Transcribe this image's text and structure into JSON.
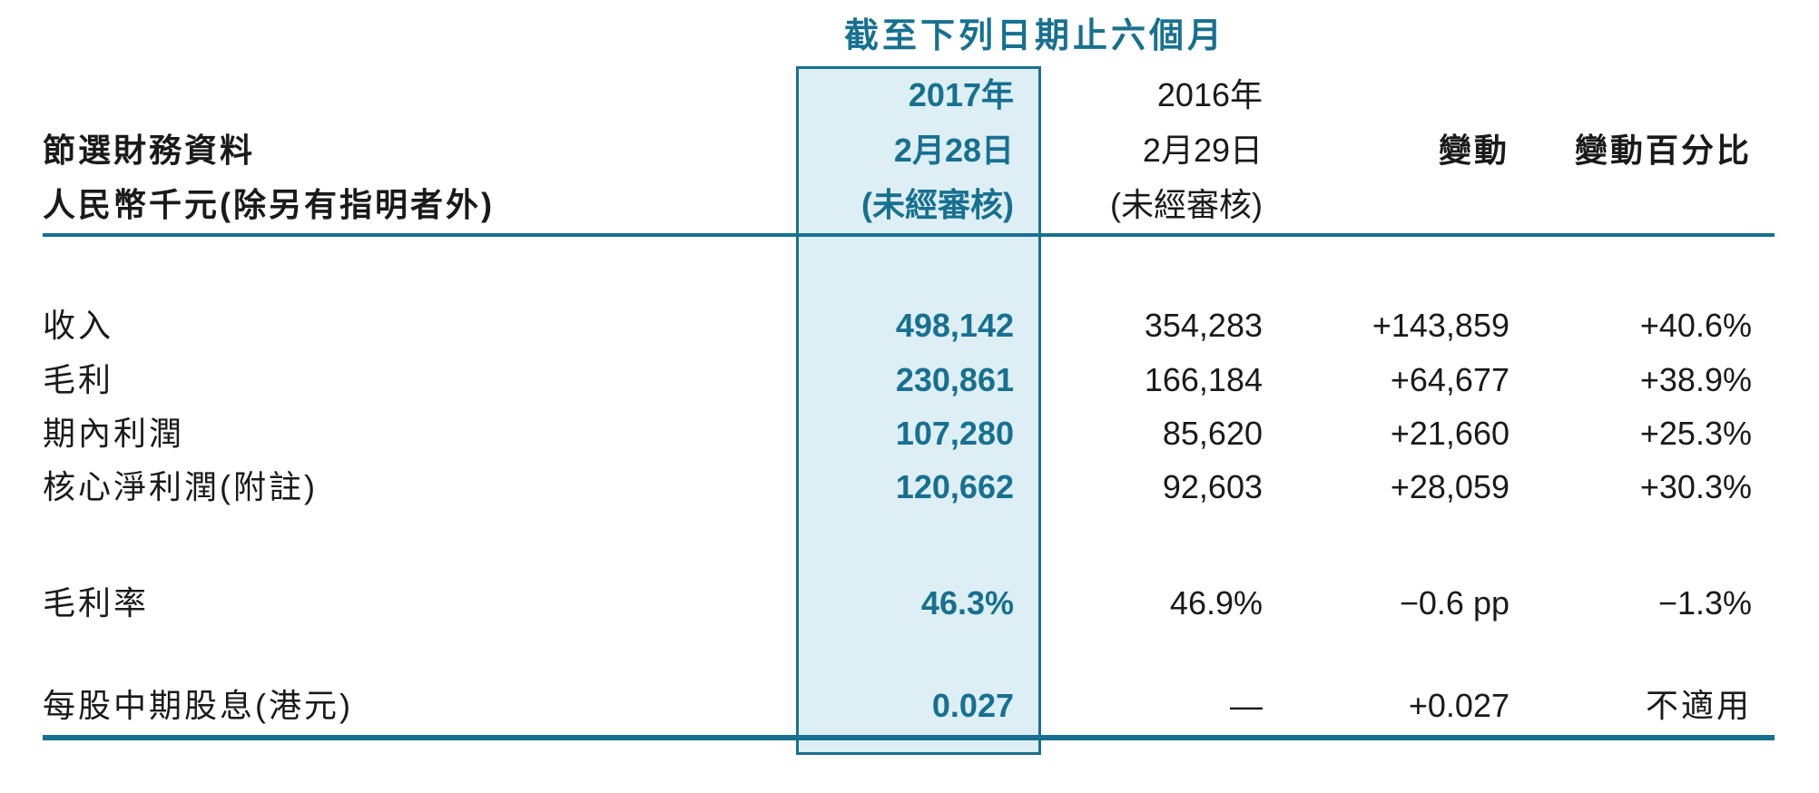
{
  "document": {
    "type": "financial-summary-table",
    "period_title": "截至下列日期止六個月",
    "left_header": {
      "line1": "節選財務資料",
      "line2": "人民幣千元(除另有指明者外)"
    },
    "columns": {
      "current": {
        "year": "2017年",
        "date": "2月28日",
        "note": "(未經審核)"
      },
      "prior": {
        "year": "2016年",
        "date": "2月29日",
        "note": "(未經審核)"
      },
      "change_label": "變動",
      "change_pct_label": "變動百分比"
    },
    "rows": [
      {
        "label": "收入",
        "current": "498,142",
        "prior": "354,283",
        "change": "+143,859",
        "pct": "+40.6%"
      },
      {
        "label": "毛利",
        "current": "230,861",
        "prior": "166,184",
        "change": "+64,677",
        "pct": "+38.9%"
      },
      {
        "label": "期內利潤",
        "current": "107,280",
        "prior": "85,620",
        "change": "+21,660",
        "pct": "+25.3%"
      },
      {
        "label": "核心淨利潤(附註)",
        "current": "120,662",
        "prior": "92,603",
        "change": "+28,059",
        "pct": "+30.3%"
      },
      {
        "label": "毛利率",
        "current": "46.3%",
        "prior": "46.9%",
        "change": "−0.6 pp",
        "pct": "−1.3%"
      },
      {
        "label": "每股中期股息(港元)",
        "current": "0.027",
        "prior": "—",
        "change": "+0.027",
        "pct": "不適用"
      }
    ],
    "colors": {
      "accent_teal": "#17708f",
      "highlight_fill": "#ddeef5",
      "highlight_border": "#1a7190",
      "body_text": "#1a1a1a",
      "background": "#ffffff"
    }
  }
}
